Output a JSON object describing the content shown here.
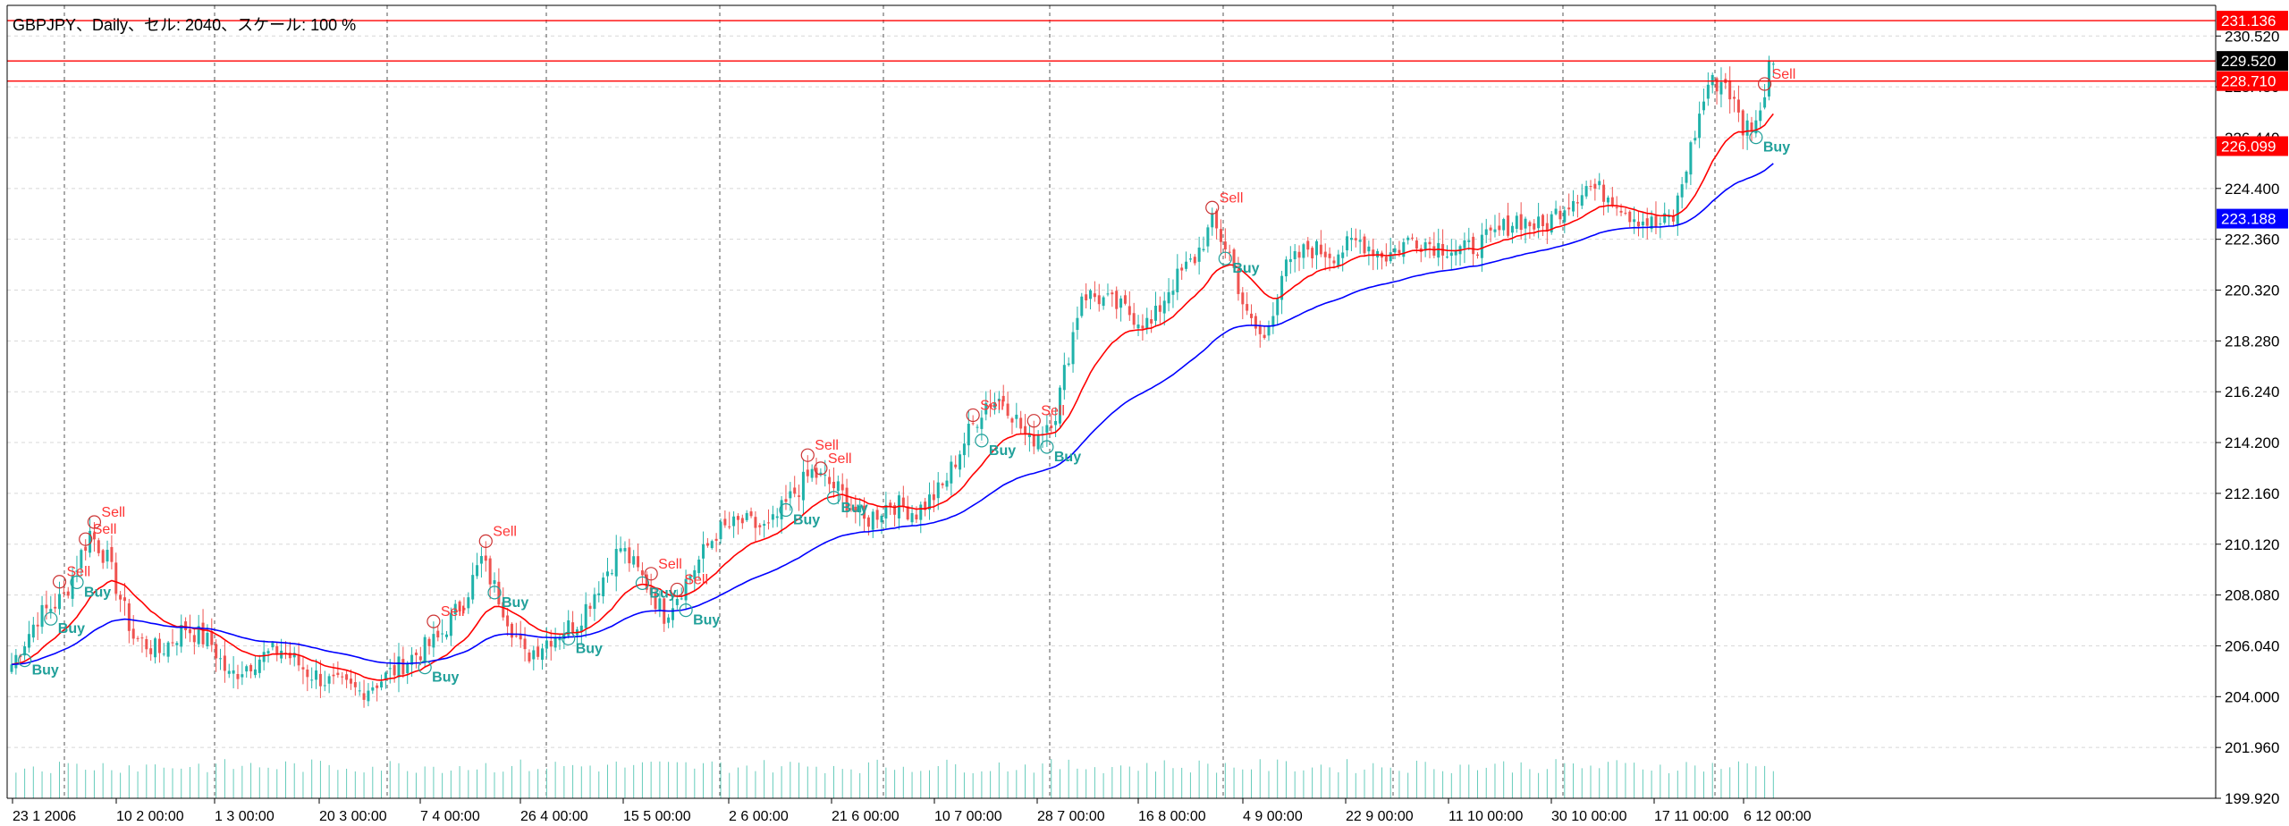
{
  "header": {
    "title": "GBPJPY、Daily、セル: 2040、スケール: 100 %"
  },
  "chart_data": {
    "type": "candlestick",
    "symbol": "GBPJPY",
    "timeframe": "Daily",
    "y_ticks": [
      "230.520",
      "228.480",
      "226.440",
      "224.400",
      "222.360",
      "220.320",
      "218.280",
      "216.240",
      "214.200",
      "212.160",
      "210.120",
      "208.080",
      "206.040",
      "204.000",
      "201.960",
      "199.920"
    ],
    "y_range": [
      199.92,
      231.75
    ],
    "x_ticks": [
      "23 1 2006",
      "10 2 00:00",
      "1 3 00:00",
      "20 3 00:00",
      "7 4 00:00",
      "26 4 00:00",
      "15 5 00:00",
      "2 6 00:00",
      "21 6 00:00",
      "10 7 00:00",
      "28 7 00:00",
      "16 8 00:00",
      "4 9 00:00",
      "22 9 00:00",
      "11 10 00:00",
      "30 10 00:00",
      "17 11 00:00",
      "6 12 00:00"
    ],
    "price_labels": [
      {
        "value": "231.136",
        "price": 231.136,
        "color": "#ff0000"
      },
      {
        "value": "229.520",
        "price": 229.52,
        "color": "#000000"
      },
      {
        "value": "228.710",
        "price": 228.71,
        "color": "#ff0000"
      },
      {
        "value": "226.099",
        "price": 226.099,
        "color": "#ff0000"
      },
      {
        "value": "223.188",
        "price": 223.188,
        "color": "#0000ff"
      }
    ],
    "h_lines": [
      231.136,
      229.52,
      228.71
    ],
    "anchors": [
      [
        0,
        205.3
      ],
      [
        6,
        207.2
      ],
      [
        12,
        208.0
      ],
      [
        18,
        210.6
      ],
      [
        22,
        209.5
      ],
      [
        28,
        206.4
      ],
      [
        34,
        205.8
      ],
      [
        40,
        206.8
      ],
      [
        46,
        206.1
      ],
      [
        50,
        204.8
      ],
      [
        56,
        205.5
      ],
      [
        62,
        205.9
      ],
      [
        68,
        205.0
      ],
      [
        74,
        204.5
      ],
      [
        80,
        204.2
      ],
      [
        86,
        204.8
      ],
      [
        92,
        205.6
      ],
      [
        98,
        206.3
      ],
      [
        104,
        207.9
      ],
      [
        108,
        209.5
      ],
      [
        112,
        208.0
      ],
      [
        118,
        205.6
      ],
      [
        124,
        206.4
      ],
      [
        130,
        207.0
      ],
      [
        136,
        208.8
      ],
      [
        140,
        210.0
      ],
      [
        146,
        208.5
      ],
      [
        150,
        207.3
      ],
      [
        156,
        208.9
      ],
      [
        162,
        210.6
      ],
      [
        168,
        211.0
      ],
      [
        174,
        210.7
      ],
      [
        180,
        212.2
      ],
      [
        184,
        213.0
      ],
      [
        190,
        212.3
      ],
      [
        196,
        211.0
      ],
      [
        202,
        211.8
      ],
      [
        208,
        211.4
      ],
      [
        214,
        212.4
      ],
      [
        220,
        214.6
      ],
      [
        224,
        215.8
      ],
      [
        228,
        216.0
      ],
      [
        234,
        214.2
      ],
      [
        240,
        215.4
      ],
      [
        246,
        220.2
      ],
      [
        250,
        220.0
      ],
      [
        256,
        219.5
      ],
      [
        262,
        218.9
      ],
      [
        266,
        220.4
      ],
      [
        272,
        221.6
      ],
      [
        276,
        223.0
      ],
      [
        280,
        221.8
      ],
      [
        284,
        219.2
      ],
      [
        288,
        218.3
      ],
      [
        292,
        221.0
      ],
      [
        298,
        222.0
      ],
      [
        304,
        221.8
      ],
      [
        310,
        222.3
      ],
      [
        316,
        221.7
      ],
      [
        322,
        222.4
      ],
      [
        328,
        222.1
      ],
      [
        334,
        221.9
      ],
      [
        340,
        222.4
      ],
      [
        346,
        223.2
      ],
      [
        352,
        222.8
      ],
      [
        356,
        223.6
      ],
      [
        362,
        224.5
      ],
      [
        368,
        224.1
      ],
      [
        372,
        223.4
      ],
      [
        378,
        222.9
      ],
      [
        382,
        223.2
      ],
      [
        386,
        226.0
      ],
      [
        390,
        228.6
      ],
      [
        394,
        228.7
      ],
      [
        398,
        226.8
      ],
      [
        402,
        227.3
      ],
      [
        404,
        229.6
      ]
    ],
    "ema_fast_color": "#ff0000",
    "ema_slow_color": "#0000ff",
    "bull_color": "#20b2aa",
    "bear_color": "#ef5350",
    "signals": [
      {
        "bar": 3,
        "type": "Buy"
      },
      {
        "bar": 9,
        "type": "Buy"
      },
      {
        "bar": 15,
        "type": "Buy"
      },
      {
        "bar": 11,
        "type": "Sell"
      },
      {
        "bar": 17,
        "type": "Sell"
      },
      {
        "bar": 19,
        "type": "Sell"
      },
      {
        "bar": 95,
        "type": "Buy"
      },
      {
        "bar": 97,
        "type": "Sell"
      },
      {
        "bar": 109,
        "type": "Sell"
      },
      {
        "bar": 111,
        "type": "Buy"
      },
      {
        "bar": 128,
        "type": "Buy"
      },
      {
        "bar": 145,
        "type": "Buy"
      },
      {
        "bar": 147,
        "type": "Sell"
      },
      {
        "bar": 153,
        "type": "Sell"
      },
      {
        "bar": 155,
        "type": "Buy"
      },
      {
        "bar": 178,
        "type": "Buy"
      },
      {
        "bar": 183,
        "type": "Sell"
      },
      {
        "bar": 186,
        "type": "Sell"
      },
      {
        "bar": 189,
        "type": "Buy"
      },
      {
        "bar": 221,
        "type": "Sell"
      },
      {
        "bar": 223,
        "type": "Buy"
      },
      {
        "bar": 235,
        "type": "Sell"
      },
      {
        "bar": 238,
        "type": "Buy"
      },
      {
        "bar": 276,
        "type": "Sell"
      },
      {
        "bar": 279,
        "type": "Buy"
      },
      {
        "bar": 403,
        "type": "Sell"
      },
      {
        "bar": 401,
        "type": "Buy"
      }
    ]
  }
}
